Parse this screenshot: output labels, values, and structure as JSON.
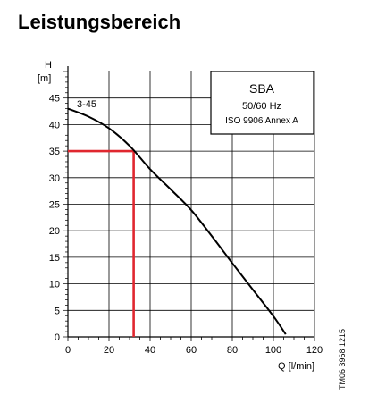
{
  "header": {
    "title": "Leistungsbereich"
  },
  "side_label": "TM06 3968 1215",
  "chart_data": {
    "type": "line",
    "ylabel_top": "H",
    "ylabel_unit": "[m]",
    "xlabel": "Q [l/min]",
    "xlim": [
      0,
      120
    ],
    "ylim": [
      0,
      50
    ],
    "x_ticks": [
      0,
      20,
      40,
      60,
      80,
      100,
      120
    ],
    "y_ticks": [
      0,
      5,
      10,
      15,
      20,
      25,
      30,
      35,
      40,
      45
    ],
    "grid": true,
    "legend_box": {
      "line1": "SBA",
      "line2": "50/60 Hz",
      "line3": "ISO 9906 Annex A"
    },
    "series": [
      {
        "name": "3-45",
        "x": [
          0,
          10,
          20,
          30,
          40,
          50,
          60,
          70,
          80,
          90,
          100,
          106
        ],
        "y": [
          43.0,
          41.5,
          39.3,
          36.0,
          31.6,
          27.8,
          23.9,
          19.0,
          13.9,
          8.9,
          3.9,
          0.5
        ]
      }
    ],
    "duty_point": {
      "x": 32,
      "y": 35,
      "color": "#e0272f"
    }
  }
}
